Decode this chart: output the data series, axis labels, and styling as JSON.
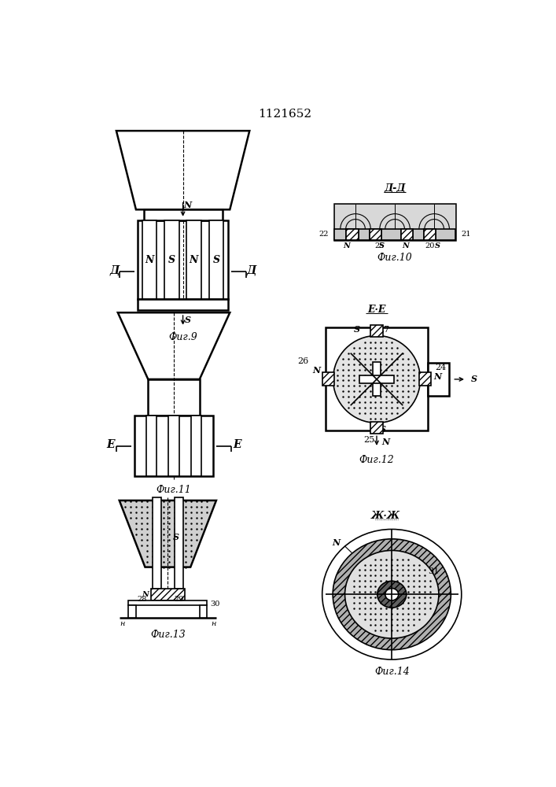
{
  "title": "1121652",
  "bg_color": "#ffffff",
  "line_color": "#000000",
  "fig9_label": "Фиг.9",
  "fig10_label": "Фиг.10",
  "fig11_label": "Фиг.11",
  "fig12_label": "Фиг.12",
  "fig13_label": "Фиг.13",
  "fig14_label": "Фиг.14"
}
